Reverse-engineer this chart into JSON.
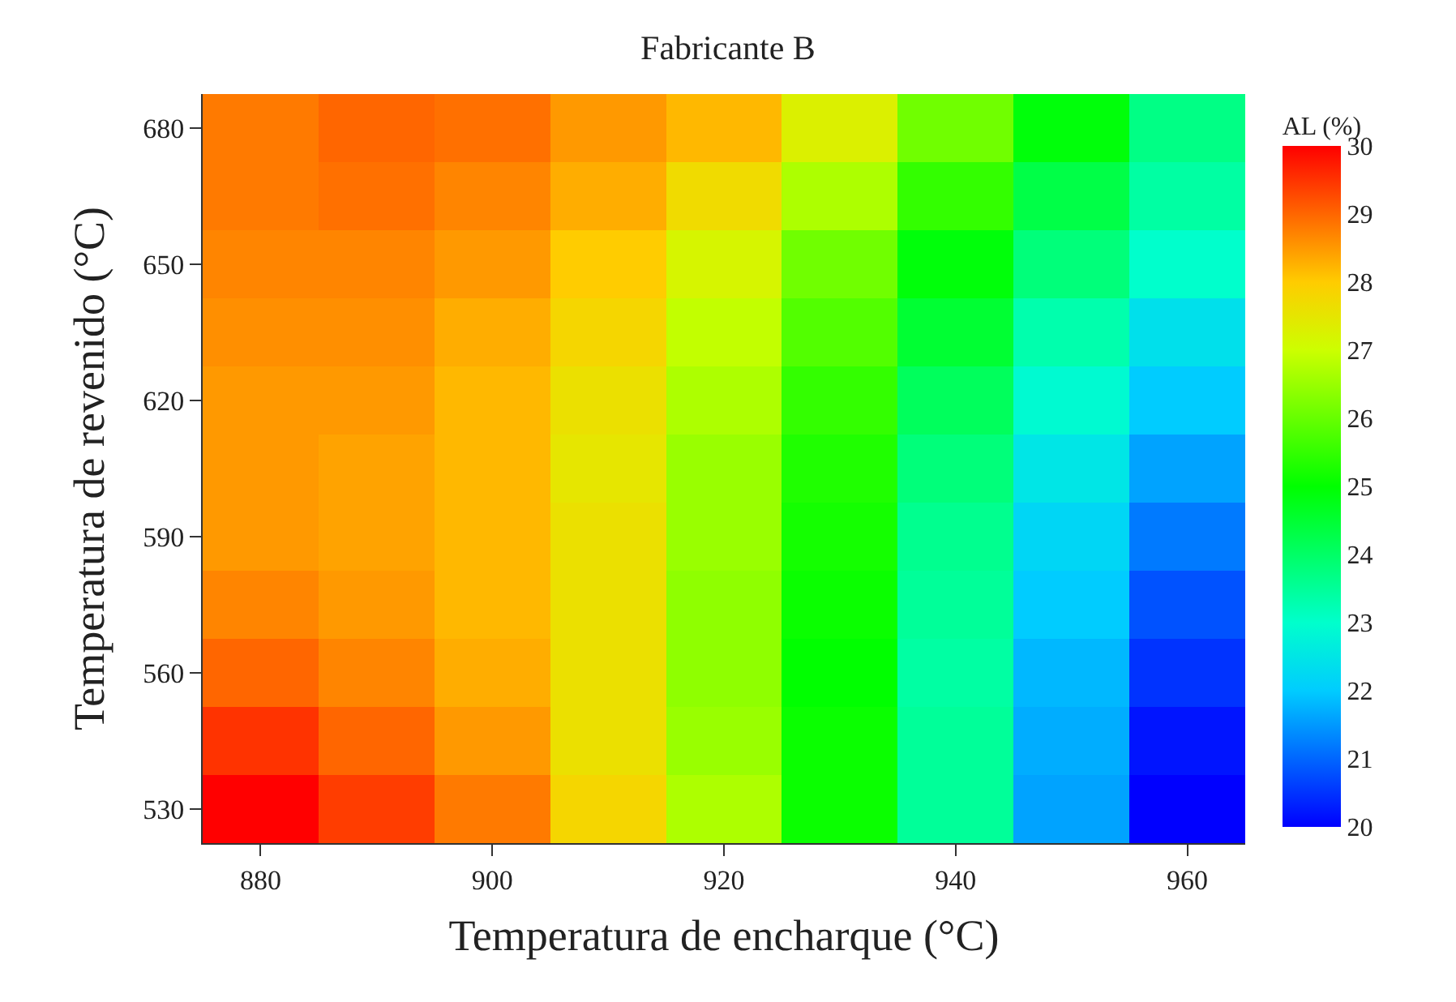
{
  "chart_data": {
    "type": "heatmap",
    "title": "Fabricante B",
    "xlabel": "Temperatura de encharque (°C)",
    "ylabel": "Temperatura de revenido (°C)",
    "clabel": "AL (%)",
    "categories": [
      "880",
      null,
      "900",
      null,
      "920",
      null,
      "940",
      null,
      "960"
    ],
    "y_categories": [
      "680",
      null,
      "650",
      null,
      "620",
      null,
      "590",
      null,
      "560",
      null,
      "530"
    ],
    "cells": [
      [
        28.8,
        29.0,
        28.9,
        28.5,
        28.2,
        27.3,
        26.1,
        24.9,
        23.7
      ],
      [
        28.8,
        28.9,
        28.7,
        28.3,
        27.7,
        26.7,
        25.5,
        24.3,
        23.4
      ],
      [
        28.7,
        28.7,
        28.5,
        28.0,
        27.2,
        26.1,
        24.9,
        23.8,
        23.0
      ],
      [
        28.6,
        28.6,
        28.3,
        27.8,
        26.9,
        25.8,
        24.5,
        23.3,
        22.4
      ],
      [
        28.5,
        28.5,
        28.2,
        27.6,
        26.7,
        25.5,
        24.1,
        22.9,
        22.0
      ],
      [
        28.5,
        28.4,
        28.2,
        27.5,
        26.5,
        25.3,
        23.8,
        22.5,
        21.6
      ],
      [
        28.5,
        28.4,
        28.2,
        27.6,
        26.5,
        25.2,
        23.6,
        22.2,
        21.2
      ],
      [
        28.7,
        28.5,
        28.2,
        27.6,
        26.4,
        25.1,
        23.5,
        22.0,
        20.8
      ],
      [
        29.0,
        28.7,
        28.3,
        27.6,
        26.4,
        25.0,
        23.4,
        21.8,
        20.5
      ],
      [
        29.5,
        29.0,
        28.5,
        27.6,
        26.5,
        25.1,
        23.5,
        21.7,
        20.2
      ],
      [
        30.0,
        29.4,
        28.8,
        27.8,
        26.7,
        25.1,
        23.5,
        21.6,
        20.0
      ]
    ],
    "colors": [
      "#0000ff",
      "#0066ff",
      "#00ccff",
      "#00ffcc",
      "#00ff66",
      "#00ff00",
      "#66ff00",
      "#ccff00",
      "#ffcc00",
      "#ff6600",
      "#ff0000"
    ],
    "clim": [
      20,
      30
    ],
    "cticks": [
      20,
      21,
      22,
      23,
      24,
      25,
      26,
      27,
      28,
      29,
      30
    ]
  }
}
